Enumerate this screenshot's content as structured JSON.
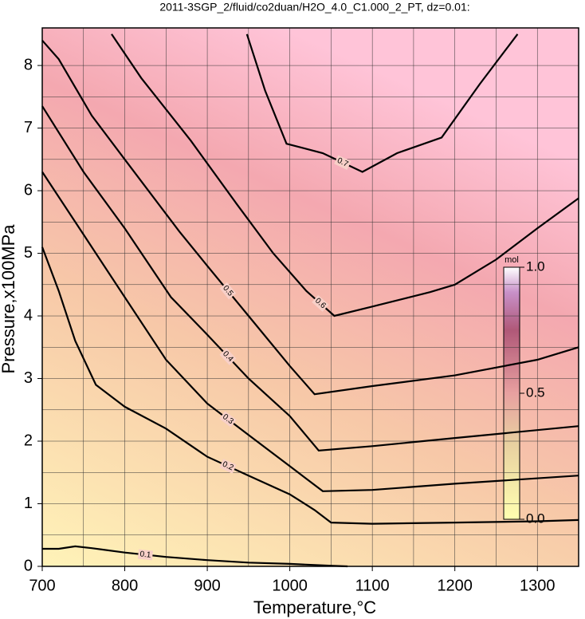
{
  "chart_data": {
    "type": "contour",
    "title": "2011-3SGP_2/fluid/co2duan/H2O_4.0_C1.000_2_PT, dz=0.01:",
    "xlabel": "Temperature,°C",
    "ylabel": "Pressure,x100MPa",
    "xlim": [
      700,
      1350
    ],
    "ylim": [
      0,
      8.6
    ],
    "xticks": [
      700,
      800,
      900,
      1000,
      1100,
      1200,
      1300
    ],
    "yticks": [
      0,
      1,
      2,
      3,
      4,
      5,
      6,
      7,
      8
    ],
    "grid": true,
    "contours": [
      {
        "level": 0.1,
        "x": [
          700,
          720,
          740,
          760,
          800,
          850,
          900,
          950,
          1000,
          1050,
          1070
        ],
        "y": [
          0.28,
          0.28,
          0.32,
          0.29,
          0.22,
          0.15,
          0.1,
          0.06,
          0.04,
          0.01,
          0
        ]
      },
      {
        "level": 0.2,
        "x": [
          700,
          720,
          740,
          765,
          800,
          850,
          900,
          950,
          1000,
          1030,
          1050,
          1100,
          1200,
          1300,
          1350
        ],
        "y": [
          5.1,
          4.4,
          3.6,
          2.9,
          2.55,
          2.2,
          1.75,
          1.45,
          1.15,
          0.9,
          0.7,
          0.68,
          0.7,
          0.72,
          0.74
        ]
      },
      {
        "level": 0.3,
        "x": [
          700,
          750,
          800,
          850,
          900,
          950,
          1000,
          1040,
          1100,
          1200,
          1350
        ],
        "y": [
          6.3,
          5.3,
          4.3,
          3.3,
          2.6,
          2.1,
          1.6,
          1.2,
          1.22,
          1.32,
          1.45
        ]
      },
      {
        "level": 0.4,
        "x": [
          700,
          750,
          800,
          856,
          900,
          950,
          1000,
          1035,
          1100,
          1200,
          1350
        ],
        "y": [
          7.35,
          6.3,
          5.4,
          4.3,
          3.7,
          3.0,
          2.4,
          1.85,
          1.92,
          2.05,
          2.24
        ]
      },
      {
        "level": 0.5,
        "x": [
          700,
          720,
          760,
          800,
          866,
          900,
          950,
          1000,
          1030,
          1100,
          1200,
          1300,
          1350
        ],
        "y": [
          8.4,
          8.1,
          7.2,
          6.5,
          5.35,
          4.8,
          4.0,
          3.2,
          2.75,
          2.88,
          3.05,
          3.3,
          3.5
        ]
      },
      {
        "level": 0.6,
        "x": [
          784,
          820,
          880,
          935,
          980,
          1020,
          1054,
          1100,
          1170,
          1200,
          1250,
          1300,
          1350
        ],
        "y": [
          8.5,
          7.8,
          6.8,
          5.8,
          5.0,
          4.4,
          4.0,
          4.15,
          4.38,
          4.5,
          4.9,
          5.4,
          5.88
        ]
      },
      {
        "level": 0.7,
        "x": [
          948,
          970,
          996,
          1040,
          1088,
          1130,
          1184,
          1230,
          1276
        ],
        "y": [
          8.5,
          7.6,
          6.75,
          6.6,
          6.3,
          6.6,
          6.85,
          7.7,
          8.5
        ]
      }
    ],
    "colorbar": {
      "label": "mol",
      "lim": [
        0,
        1
      ],
      "ticks": [
        {
          "value": 0,
          "label": "0.0"
        },
        {
          "value": 0.5,
          "label": "0.5"
        },
        {
          "value": 1,
          "label": "1.0"
        }
      ]
    }
  }
}
